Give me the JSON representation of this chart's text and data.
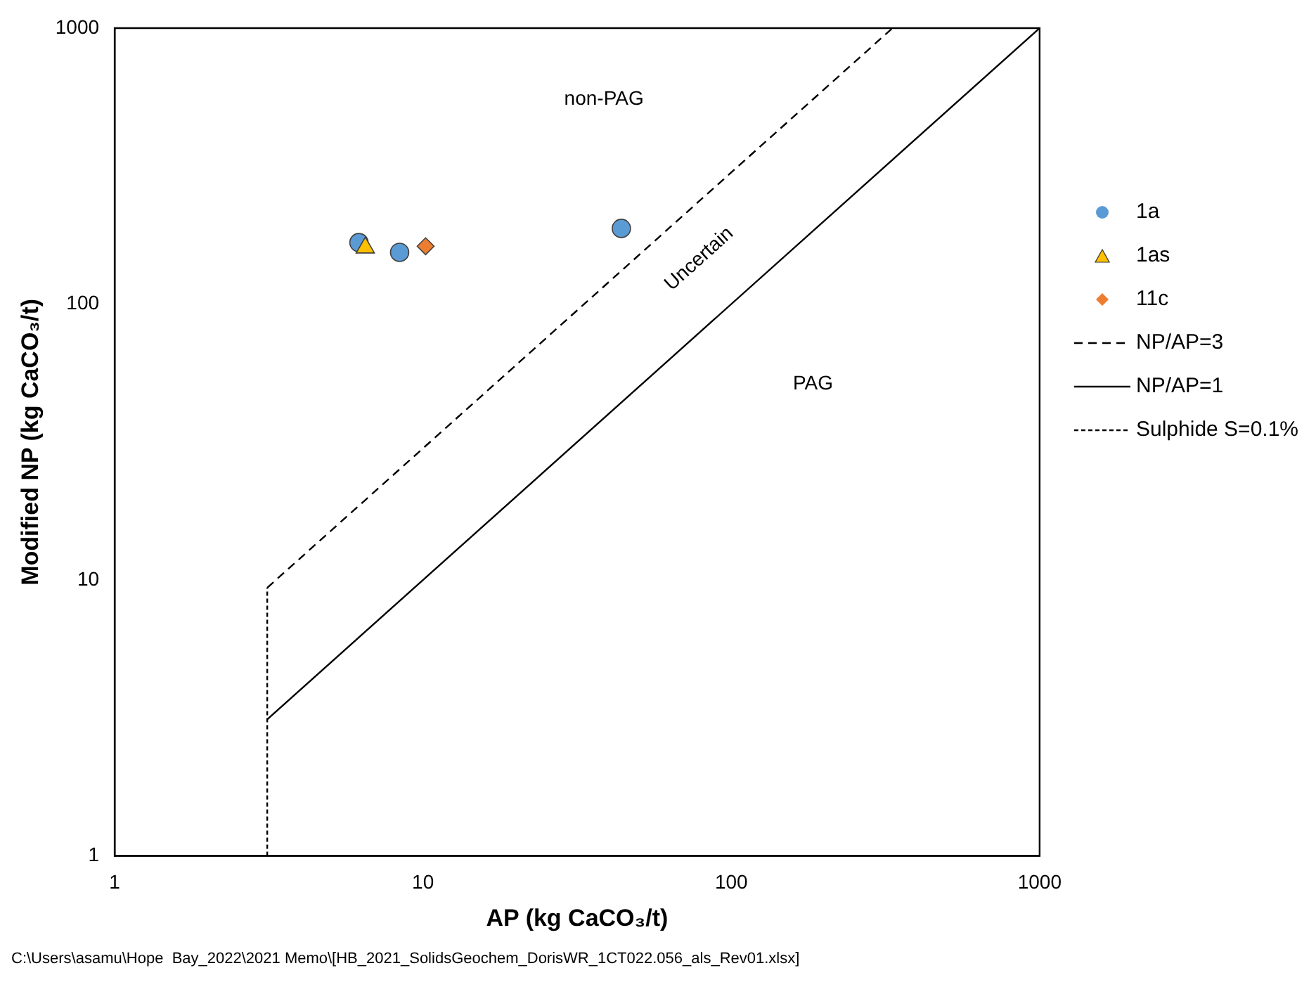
{
  "chart_data": {
    "type": "scatter",
    "xlabel": "AP (kg CaCO₃/t)",
    "ylabel": "Modified NP (kg CaCO₃/t)",
    "log": "xy",
    "xlim": [
      1,
      1000
    ],
    "ylim": [
      1,
      1000
    ],
    "xticks": [
      1,
      10,
      100,
      1000
    ],
    "yticks": [
      1,
      10,
      100,
      1000
    ],
    "grid": false,
    "legend": "right",
    "series": [
      {
        "name": "1a",
        "marker": "circle",
        "color": "#5b9bd5",
        "x": [
          6.2,
          8.4,
          44
        ],
        "values": [
          167,
          154,
          188
        ]
      },
      {
        "name": "1as",
        "marker": "triangle",
        "color": "#ffc000",
        "x": [
          6.5
        ],
        "values": [
          160
        ]
      },
      {
        "name": "11c",
        "marker": "diamond",
        "color": "#ed7d31",
        "x": [
          10.2
        ],
        "values": [
          162
        ]
      },
      {
        "name": "NP/AP=3",
        "type": "line",
        "marker": "none",
        "line_style": "dashed",
        "color": "#000000",
        "x": [
          3.125,
          333.3
        ],
        "values": [
          9.375,
          1000
        ]
      },
      {
        "name": "NP/AP=1",
        "type": "line",
        "marker": "none",
        "line_style": "solid",
        "color": "#000000",
        "x": [
          3.125,
          1000
        ],
        "values": [
          3.125,
          1000
        ]
      },
      {
        "name": "Sulphide S=0.1%",
        "type": "line",
        "marker": "none",
        "line_style": "dotted",
        "color": "#000000",
        "x": [
          3.125,
          3.125
        ],
        "values": [
          1,
          9.375
        ]
      }
    ],
    "annotations": [
      "non-PAG",
      "Uncertain",
      "PAG",
      "C:\\Users\\asamu\\Hope  Bay_2022\\2021 Memo\\[HB_2021_SolidsGeochem_DorisWR_1CT022.056_als_Rev01.xlsx]"
    ]
  }
}
